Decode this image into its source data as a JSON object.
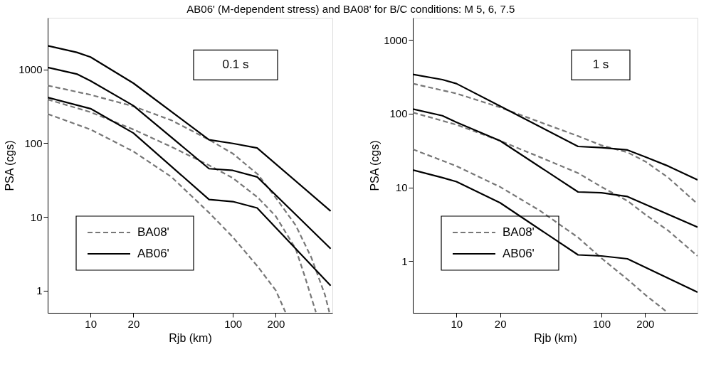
{
  "chart_data": [
    {
      "type": "line",
      "title": "AB06' (M-dependent stress) and BA08' for B/C conditions: M 5, 6, 7.5",
      "xlabel": "Rjb (km)",
      "ylabel": "PSA (cgs)",
      "log": "xy",
      "xlim": [
        5,
        500
      ],
      "ylim": [
        0.5,
        5000
      ],
      "xticks": [
        10,
        20,
        100,
        200
      ],
      "yticks": [
        1,
        10,
        100,
        1000
      ],
      "grid": false,
      "legend": "bottom left",
      "marker": "none",
      "annotations": [
        "0.1 s"
      ],
      "series": [
        {
          "name": "BA08'",
          "color": "#777777",
          "line_style": "dashed",
          "x": [
            5,
            10,
            20,
            37,
            68,
            100,
            150,
            200,
            276,
            356,
            443,
            476
          ],
          "values": [
            603,
            452,
            315,
            204,
            111,
            72,
            37.5,
            18.2,
            7.7,
            2.8,
            0.88,
            0.51
          ]
        },
        {
          "color": "#777777",
          "line_style": "dashed",
          "x": [
            5,
            10,
            20,
            37,
            68,
            100,
            150,
            200,
            276,
            320,
            383
          ],
          "values": [
            391,
            263,
            153,
            89,
            50,
            33.6,
            18.2,
            10.2,
            3.7,
            1.56,
            0.51
          ]
        },
        {
          "color": "#777777",
          "line_style": "dashed",
          "x": [
            5,
            10,
            20,
            37,
            68,
            100,
            150,
            200,
            234
          ],
          "values": [
            248,
            153,
            77,
            34.8,
            11.4,
            5.3,
            2.1,
            1.01,
            0.51
          ]
        },
        {
          "name": "AB06'",
          "color": "#000000",
          "line_style": "solid",
          "x": [
            5,
            8,
            10,
            20,
            68,
            100,
            148,
            486
          ],
          "values": [
            2090,
            1700,
            1466,
            649,
            111,
            99,
            86,
            12
          ]
        },
        {
          "color": "#000000",
          "line_style": "solid",
          "x": [
            5,
            8,
            10,
            20,
            68,
            100,
            148,
            486
          ],
          "values": [
            1060,
            865,
            697,
            322,
            45,
            42.6,
            34.8,
            3.7
          ]
        },
        {
          "color": "#000000",
          "line_style": "solid",
          "x": [
            5,
            10,
            20,
            68,
            100,
            148,
            486
          ],
          "values": [
            415,
            293,
            137,
            17.2,
            16.1,
            13.2,
            1.17
          ]
        }
      ]
    },
    {
      "type": "line",
      "xlabel": "Rjb (km)",
      "ylabel": "PSA (cgs)",
      "log": "xy",
      "xlim": [
        5,
        460
      ],
      "ylim": [
        0.2,
        2000
      ],
      "xticks": [
        10,
        20,
        100,
        200
      ],
      "yticks": [
        1,
        10,
        100,
        1000
      ],
      "grid": false,
      "legend": "bottom left",
      "marker": "none",
      "annotations": [
        "1 s"
      ],
      "series": [
        {
          "name": "BA08'",
          "color": "#777777",
          "line_style": "dashed",
          "x": [
            5,
            10,
            20,
            38,
            69,
            100,
            151,
            201,
            289,
            460
          ],
          "values": [
            256,
            188,
            122,
            76.5,
            49.8,
            37.3,
            30,
            22.5,
            13.6,
            6
          ]
        },
        {
          "color": "#777777",
          "line_style": "dashed",
          "x": [
            5,
            10,
            20,
            38,
            69,
            100,
            151,
            201,
            289,
            460
          ],
          "values": [
            104,
            71,
            43,
            25.6,
            15.7,
            10.2,
            6.6,
            4.3,
            2.6,
            1.18
          ]
        },
        {
          "color": "#777777",
          "line_style": "dashed",
          "x": [
            5,
            10,
            20,
            38,
            69,
            100,
            151,
            201,
            279
          ],
          "values": [
            33,
            19.5,
            10.2,
            4.8,
            2.1,
            1.1,
            0.57,
            0.35,
            0.21
          ]
        },
        {
          "name": "AB06'",
          "color": "#000000",
          "line_style": "solid",
          "x": [
            5,
            8,
            10,
            20,
            69,
            100,
            151,
            201,
            289,
            460
          ],
          "values": [
            342,
            290,
            256,
            127,
            36,
            34.7,
            32.3,
            26,
            19.5,
            12.7
          ]
        },
        {
          "color": "#000000",
          "line_style": "solid",
          "x": [
            5,
            8,
            10,
            20,
            69,
            100,
            151,
            460
          ],
          "values": [
            116,
            94,
            76.5,
            43,
            8.7,
            8.5,
            7.55,
            2.9
          ]
        },
        {
          "color": "#000000",
          "line_style": "solid",
          "x": [
            5,
            8,
            10,
            20,
            69,
            100,
            151,
            460
          ],
          "values": [
            17.3,
            13.6,
            12,
            6.2,
            1.22,
            1.18,
            1.08,
            0.38
          ]
        }
      ]
    }
  ]
}
